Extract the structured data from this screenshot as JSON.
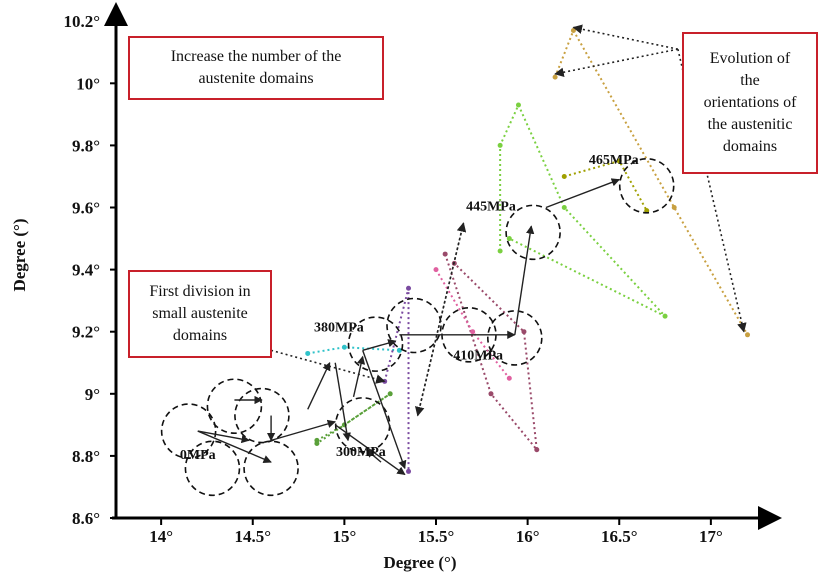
{
  "chart_data": {
    "type": "scatter",
    "xlabel": "Degree (°)",
    "ylabel": "Degree (°)",
    "xlim": [
      13.65,
      17.35
    ],
    "ylim": [
      8.6,
      10.22
    ],
    "x_ticks": [
      "14°",
      "14.5°",
      "15°",
      "15.5°",
      "16°",
      "16.5°",
      "17°"
    ],
    "x_tick_values": [
      14,
      14.5,
      15,
      15.5,
      16,
      16.5,
      17
    ],
    "y_ticks": [
      "8.6°",
      "8.8°",
      "9°",
      "9.2°",
      "9.4°",
      "9.6°",
      "9.8°",
      "10°",
      "10.2°"
    ],
    "y_tick_values": [
      8.6,
      8.8,
      9.0,
      9.2,
      9.4,
      9.6,
      9.8,
      10.0,
      10.2
    ],
    "stress_levels": [
      {
        "label": "0MPa",
        "label_at": [
          14.2,
          8.79
        ]
      },
      {
        "label": "300MPa",
        "label_at": [
          15.09,
          8.8
        ]
      },
      {
        "label": "380MPa",
        "label_at": [
          14.97,
          9.2
        ]
      },
      {
        "label": "410MPa",
        "label_at": [
          15.73,
          9.11
        ]
      },
      {
        "label": "445MPa",
        "label_at": [
          15.8,
          9.59
        ]
      },
      {
        "label": "465MPa",
        "label_at": [
          16.47,
          9.74
        ]
      }
    ],
    "domain_circles": [
      {
        "center": [
          14.15,
          8.88
        ],
        "color": "#111111"
      },
      {
        "center": [
          14.4,
          8.96
        ],
        "color": "#111111"
      },
      {
        "center": [
          14.55,
          8.93
        ],
        "color": "#111111"
      },
      {
        "center": [
          14.28,
          8.76
        ],
        "color": "#111111"
      },
      {
        "center": [
          14.6,
          8.76
        ],
        "color": "#111111"
      },
      {
        "center": [
          15.1,
          8.9
        ],
        "color": "#111111"
      },
      {
        "center": [
          15.17,
          9.16
        ],
        "color": "#111111"
      },
      {
        "center": [
          15.38,
          9.22
        ],
        "color": "#111111"
      },
      {
        "center": [
          15.68,
          9.19
        ],
        "color": "#111111"
      },
      {
        "center": [
          15.93,
          9.18
        ],
        "color": "#111111"
      },
      {
        "center": [
          16.03,
          9.52
        ],
        "color": "#111111"
      },
      {
        "center": [
          16.65,
          9.67
        ],
        "color": "#111111"
      }
    ],
    "series": [
      {
        "color": "#5aa03a",
        "points": [
          [
            14.85,
            8.85
          ],
          [
            15.0,
            8.9
          ],
          [
            15.25,
            9.0
          ],
          [
            14.85,
            8.84
          ]
        ]
      },
      {
        "color": "#2fc2c9",
        "points": [
          [
            14.8,
            9.13
          ],
          [
            15.0,
            9.15
          ],
          [
            15.3,
            9.14
          ]
        ]
      },
      {
        "color": "#7a4aa0",
        "points": [
          [
            15.22,
            9.04
          ],
          [
            15.35,
            9.34
          ],
          [
            15.35,
            8.75
          ]
        ]
      },
      {
        "color": "#9a4a6a",
        "points": [
          [
            15.55,
            9.45
          ],
          [
            15.8,
            9.0
          ],
          [
            16.05,
            8.82
          ],
          [
            15.98,
            9.2
          ],
          [
            15.6,
            9.42
          ]
        ]
      },
      {
        "color": "#e060a0",
        "points": [
          [
            15.5,
            9.4
          ],
          [
            15.7,
            9.2
          ],
          [
            15.9,
            9.05
          ]
        ]
      },
      {
        "color": "#7ad040",
        "points": [
          [
            15.85,
            9.46
          ],
          [
            15.85,
            9.8
          ],
          [
            15.95,
            9.93
          ],
          [
            16.2,
            9.6
          ],
          [
            16.75,
            9.25
          ],
          [
            15.9,
            9.5
          ]
        ]
      },
      {
        "color": "#a0a000",
        "points": [
          [
            16.2,
            9.7
          ],
          [
            16.5,
            9.75
          ],
          [
            16.65,
            9.59
          ]
        ]
      },
      {
        "color": "#c8a040",
        "points": [
          [
            16.15,
            10.02
          ],
          [
            16.25,
            10.17
          ],
          [
            16.8,
            9.6
          ],
          [
            17.2,
            9.19
          ]
        ]
      }
    ],
    "arrows": [
      {
        "from": [
          14.2,
          8.88
        ],
        "to": [
          14.48,
          8.85
        ],
        "dashed": false
      },
      {
        "from": [
          14.2,
          8.88
        ],
        "to": [
          14.6,
          8.78
        ],
        "dashed": false
      },
      {
        "from": [
          14.4,
          8.98
        ],
        "to": [
          14.55,
          8.98
        ],
        "dashed": false
      },
      {
        "from": [
          14.6,
          8.93
        ],
        "to": [
          14.6,
          8.85
        ],
        "dashed": false
      },
      {
        "from": [
          14.6,
          8.85
        ],
        "to": [
          14.95,
          8.91
        ],
        "dashed": false
      },
      {
        "from": [
          14.8,
          8.95
        ],
        "to": [
          14.92,
          9.1
        ],
        "dashed": false
      },
      {
        "from": [
          14.95,
          9.1
        ],
        "to": [
          15.02,
          8.85
        ],
        "dashed": false
      },
      {
        "from": [
          15.05,
          8.99
        ],
        "to": [
          15.1,
          9.12
        ],
        "dashed": false
      },
      {
        "from": [
          15.1,
          9.14
        ],
        "to": [
          15.28,
          9.17
        ],
        "dashed": false
      },
      {
        "from": [
          15.1,
          9.14
        ],
        "to": [
          15.33,
          8.76
        ],
        "dashed": false
      },
      {
        "from": [
          14.95,
          8.9
        ],
        "to": [
          15.33,
          8.74
        ],
        "dashed": false
      },
      {
        "from": [
          15.3,
          9.19
        ],
        "to": [
          15.93,
          9.19
        ],
        "dashed": false
      },
      {
        "from": [
          15.93,
          9.19
        ],
        "to": [
          16.02,
          9.54
        ],
        "dashed": false
      },
      {
        "from": [
          16.1,
          9.6
        ],
        "to": [
          16.5,
          9.69
        ],
        "dashed": false
      },
      {
        "from": [
          15.2,
          8.78
        ],
        "to": [
          15.12,
          8.82
        ],
        "dashed": false
      },
      {
        "from": [
          15.4,
          8.93
        ],
        "to": [
          15.65,
          9.55
        ],
        "dashed": true
      },
      {
        "from": [
          15.65,
          9.55
        ],
        "to": [
          15.4,
          8.93
        ],
        "dashed": true
      },
      {
        "from": [
          14.6,
          9.14
        ],
        "to": [
          15.22,
          9.04
        ],
        "dashed": true
      },
      {
        "from": [
          16.82,
          10.11
        ],
        "to": [
          16.25,
          10.18
        ],
        "dashed": true
      },
      {
        "from": [
          16.82,
          10.11
        ],
        "to": [
          16.15,
          10.03
        ],
        "dashed": true
      },
      {
        "from": [
          16.82,
          10.11
        ],
        "to": [
          17.18,
          9.2
        ],
        "dashed": true
      }
    ]
  },
  "annotations": {
    "top_left": [
      "Increase the number of the",
      "austenite domains"
    ],
    "left": [
      "First division in",
      "small austenite",
      "domains"
    ],
    "right": [
      "Evolution of",
      "the",
      "orientations of",
      "the austenitic",
      "domains"
    ]
  }
}
